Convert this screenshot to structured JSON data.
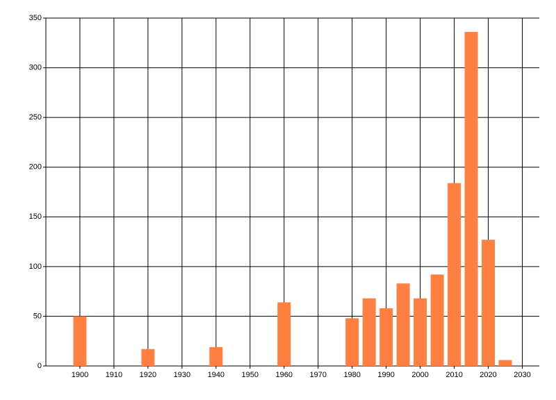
{
  "chart_data": {
    "type": "bar",
    "x": [
      1900,
      1920,
      1940,
      1960,
      1980,
      1985,
      1990,
      1995,
      2000,
      2005,
      2010,
      2015,
      2020,
      2025
    ],
    "values": [
      50,
      17,
      19,
      64,
      48,
      68,
      58,
      83,
      68,
      92,
      184,
      336,
      127,
      6
    ],
    "color": "#ff8040",
    "xlim": [
      1890,
      2035
    ],
    "xticks": [
      1900,
      1910,
      1920,
      1930,
      1940,
      1950,
      1960,
      1970,
      1980,
      1990,
      2000,
      2010,
      2020,
      2030
    ],
    "ylim": [
      0,
      350
    ],
    "yticks": [
      0,
      50,
      100,
      150,
      200,
      250,
      300,
      350
    ],
    "grid": true
  }
}
